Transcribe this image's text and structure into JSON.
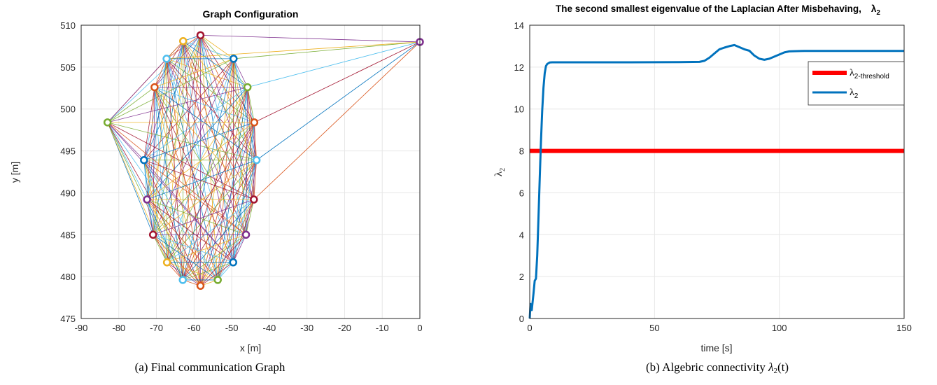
{
  "chart_data": [
    {
      "type": "scatter",
      "title": "Graph Configuration",
      "xlabel": "x [m]",
      "ylabel": "y [m]",
      "xlim": [
        -90,
        0
      ],
      "ylim": [
        475,
        510
      ],
      "xticks": [
        -90,
        -80,
        -70,
        -60,
        -50,
        -40,
        -30,
        -20,
        -10,
        0
      ],
      "yticks": [
        475,
        480,
        485,
        490,
        495,
        500,
        505,
        510
      ],
      "grid": true,
      "edges": "all-to-all between cluster nodes; outlier nodes linked to subset",
      "nodes": [
        {
          "x": -58.3,
          "y": 508.8,
          "color": "#A2142F"
        },
        {
          "x": -62.9,
          "y": 508.1,
          "color": "#EDB120"
        },
        {
          "x": -67.3,
          "y": 506.0,
          "color": "#4DBEEE"
        },
        {
          "x": -49.5,
          "y": 506.0,
          "color": "#0072BD"
        },
        {
          "x": -70.5,
          "y": 502.6,
          "color": "#D95319"
        },
        {
          "x": -45.8,
          "y": 502.6,
          "color": "#77AC30"
        },
        {
          "x": -83.0,
          "y": 498.4,
          "color": "#77AC30"
        },
        {
          "x": -44.0,
          "y": 498.4,
          "color": "#D95319"
        },
        {
          "x": -73.3,
          "y": 493.9,
          "color": "#0072BD"
        },
        {
          "x": -43.4,
          "y": 493.9,
          "color": "#4DBEEE"
        },
        {
          "x": -72.5,
          "y": 489.2,
          "color": "#7E2F8E"
        },
        {
          "x": -44.1,
          "y": 489.2,
          "color": "#A2142F"
        },
        {
          "x": -70.9,
          "y": 485.0,
          "color": "#A2142F"
        },
        {
          "x": -46.2,
          "y": 485.0,
          "color": "#7E2F8E"
        },
        {
          "x": -67.2,
          "y": 481.7,
          "color": "#EDB120"
        },
        {
          "x": -49.6,
          "y": 481.7,
          "color": "#0072BD"
        },
        {
          "x": -63.0,
          "y": 479.6,
          "color": "#4DBEEE"
        },
        {
          "x": -53.7,
          "y": 479.6,
          "color": "#77AC30"
        },
        {
          "x": -58.3,
          "y": 478.9,
          "color": "#D95319"
        },
        {
          "x": 0.0,
          "y": 508.0,
          "color": "#7E2F8E"
        }
      ]
    },
    {
      "type": "line",
      "title": "The second smallest eigenvalue of the Laplacian After Misbehaving,",
      "title_suffix": "λ",
      "title_suffix_sub": "2",
      "xlabel": "time [s]",
      "ylabel": "λ",
      "ylabel_sub": "2",
      "xlim": [
        0,
        150
      ],
      "ylim": [
        0,
        14
      ],
      "xticks": [
        0,
        50,
        100,
        150
      ],
      "yticks": [
        0,
        2,
        4,
        6,
        8,
        10,
        12,
        14
      ],
      "grid": true,
      "legend_position": "top-right",
      "series": [
        {
          "name": "λ",
          "name_sub": "2-threshold",
          "color": "#FF0000",
          "x": [
            0,
            150
          ],
          "y": [
            8,
            8
          ]
        },
        {
          "name": "λ",
          "name_sub": "2",
          "color": "#0072BD",
          "x": [
            0,
            0.3,
            0.8,
            1.5,
            2,
            2.5,
            3,
            3.5,
            4,
            4.5,
            5,
            5.5,
            6,
            6.5,
            7,
            8,
            9,
            10,
            20,
            40,
            60,
            68,
            70,
            72,
            74,
            76,
            78,
            80,
            82,
            84,
            86,
            88,
            90,
            92,
            94,
            96,
            98,
            100,
            102,
            104,
            106,
            110,
            120,
            130,
            150
          ],
          "y": [
            0,
            0.7,
            0.4,
            1.2,
            1.8,
            1.9,
            3.0,
            4.8,
            6.7,
            8.4,
            9.9,
            11.0,
            11.7,
            12.05,
            12.15,
            12.22,
            12.23,
            12.23,
            12.23,
            12.23,
            12.24,
            12.25,
            12.3,
            12.45,
            12.65,
            12.85,
            12.93,
            13.0,
            13.05,
            12.95,
            12.85,
            12.78,
            12.55,
            12.4,
            12.35,
            12.4,
            12.5,
            12.6,
            12.7,
            12.75,
            12.76,
            12.77,
            12.77,
            12.77,
            12.77
          ]
        }
      ]
    }
  ],
  "captions": {
    "a": "(a) Final communication Graph",
    "b_prefix": "(b) Algebric connectivity",
    "b_symbol": "λ",
    "b_sub": "2",
    "b_arg": "(t)"
  }
}
